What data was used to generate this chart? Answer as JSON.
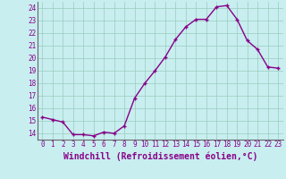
{
  "x": [
    0,
    1,
    2,
    3,
    4,
    5,
    6,
    7,
    8,
    9,
    10,
    11,
    12,
    13,
    14,
    15,
    16,
    17,
    18,
    19,
    20,
    21,
    22,
    23
  ],
  "y": [
    15.3,
    15.1,
    14.9,
    13.9,
    13.9,
    13.8,
    14.1,
    14.0,
    14.6,
    16.8,
    18.0,
    19.0,
    20.1,
    21.5,
    22.5,
    23.1,
    23.1,
    24.1,
    24.2,
    23.1,
    21.4,
    20.7,
    19.3,
    19.2
  ],
  "line_color": "#880088",
  "marker": "+",
  "bg_color": "#c8eef0",
  "grid_color": "#99ccbb",
  "xlabel": "Windchill (Refroidissement éolien,°C)",
  "ylim": [
    13.5,
    24.5
  ],
  "xlim": [
    -0.5,
    23.5
  ],
  "yticks": [
    14,
    15,
    16,
    17,
    18,
    19,
    20,
    21,
    22,
    23,
    24
  ],
  "xticks": [
    0,
    1,
    2,
    3,
    4,
    5,
    6,
    7,
    8,
    9,
    10,
    11,
    12,
    13,
    14,
    15,
    16,
    17,
    18,
    19,
    20,
    21,
    22,
    23
  ],
  "tick_label_fontsize": 5.5,
  "xlabel_fontsize": 7.0,
  "line_width": 1.0,
  "marker_size": 3.5,
  "marker_edge_width": 1.0
}
